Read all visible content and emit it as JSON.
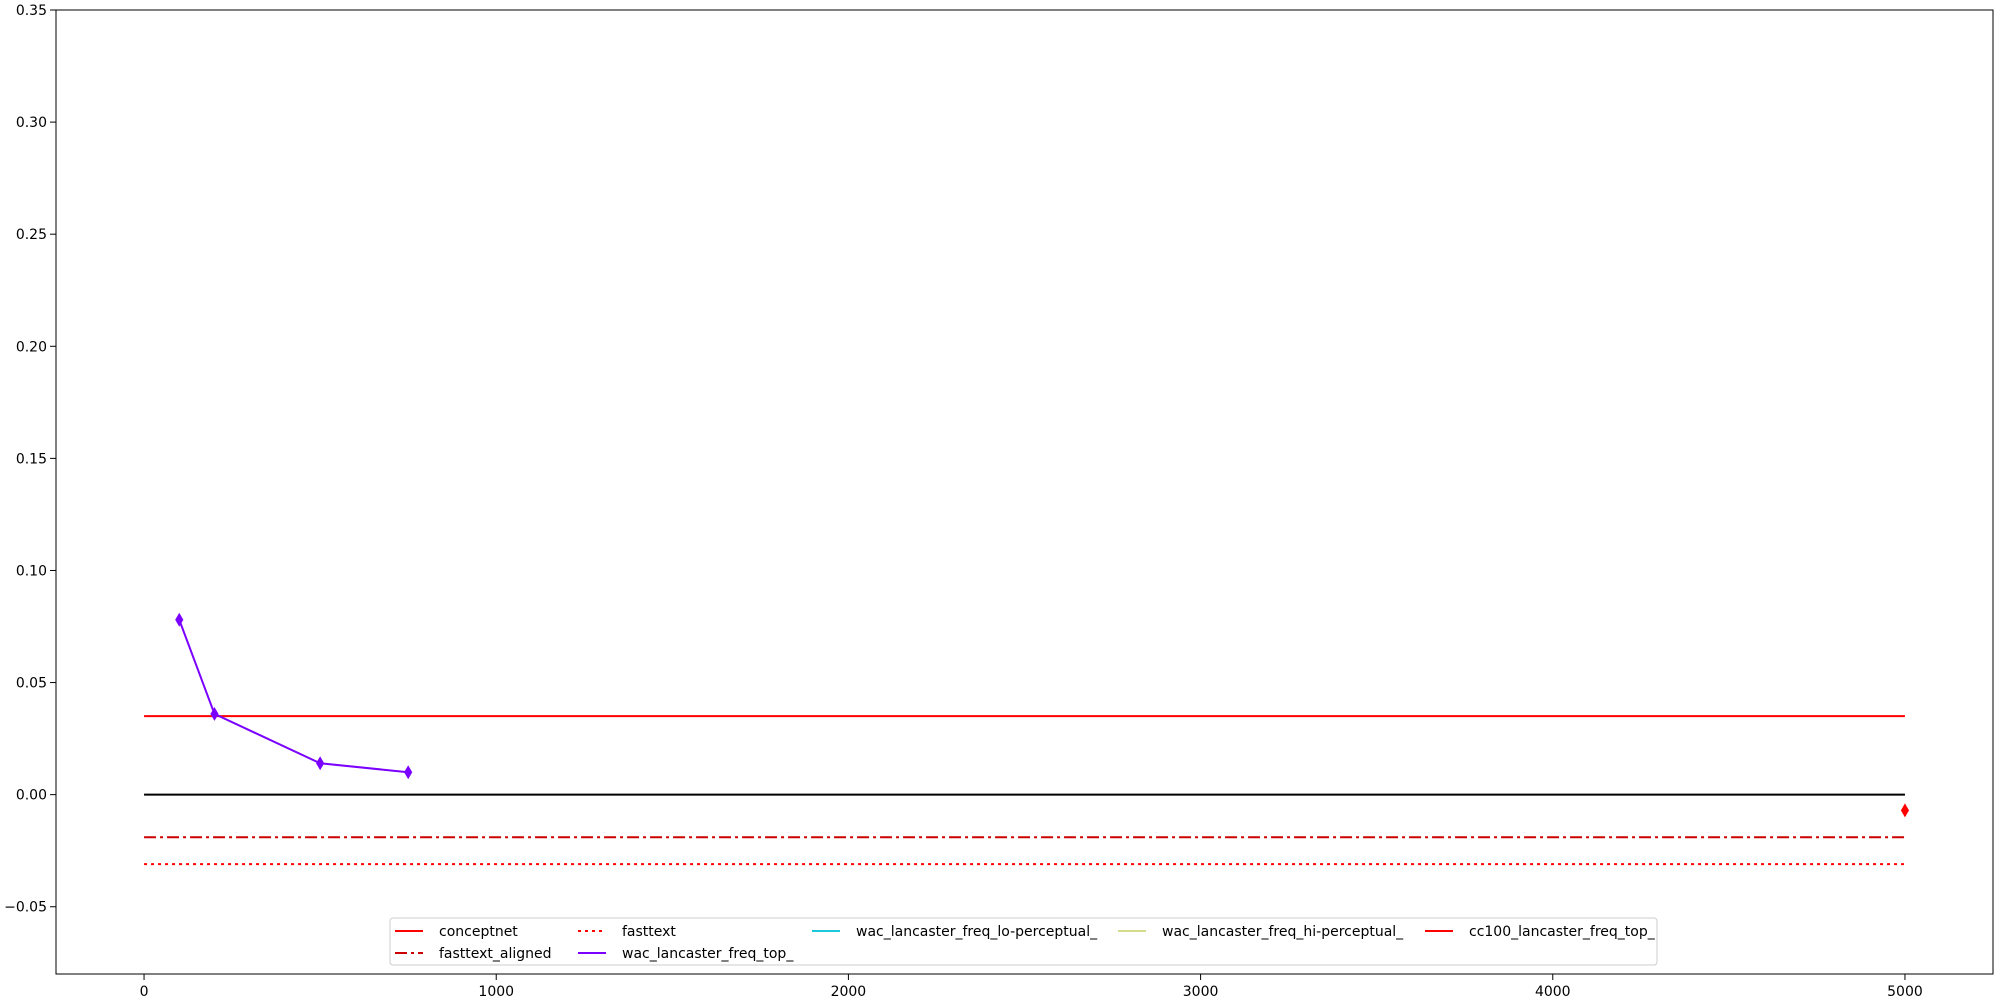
{
  "chart_data": {
    "type": "line",
    "title": "",
    "xlabel": "",
    "ylabel": "",
    "xlim": [
      -250,
      5250
    ],
    "ylim": [
      -0.08,
      0.35
    ],
    "x_ticks": [
      0,
      1000,
      2000,
      3000,
      4000,
      5000
    ],
    "x_tick_labels": [
      "0",
      "1000",
      "2000",
      "3000",
      "4000",
      "5000"
    ],
    "y_ticks": [
      -0.05,
      0.0,
      0.05,
      0.1,
      0.15,
      0.2,
      0.25,
      0.3,
      0.35
    ],
    "y_tick_labels": [
      "−0.05",
      "0.00",
      "0.05",
      "0.10",
      "0.15",
      "0.20",
      "0.25",
      "0.30",
      "0.35"
    ],
    "grid": false,
    "legend_position": "bottom-center",
    "legend": [
      {
        "name": "conceptnet",
        "color": "#ff0000",
        "style": "solid"
      },
      {
        "name": "fasttext_aligned",
        "color": "#cc0000",
        "style": "dashdot"
      },
      {
        "name": "fasttext",
        "color": "#ff0000",
        "style": "dotted"
      },
      {
        "name": "wac_lancaster_freq_top_",
        "color": "#7a00ff",
        "style": "solid"
      },
      {
        "name": "wac_lancaster_freq_lo-perceptual_",
        "color": "#1ec8d8",
        "style": "solid"
      },
      {
        "name": "wac_lancaster_freq_hi-perceptual_",
        "color": "#d4dc8a",
        "style": "solid"
      },
      {
        "name": "cc100_lancaster_freq_top_",
        "color": "#ff0000",
        "style": "solid"
      }
    ],
    "series": [
      {
        "name": "conceptnet",
        "color": "#ff0000",
        "style": "solid",
        "marker": "none",
        "x": [
          0,
          5000
        ],
        "y": [
          0.035,
          0.035
        ]
      },
      {
        "name": "fasttext_aligned",
        "color": "#cc0000",
        "style": "dashdot",
        "marker": "none",
        "x": [
          0,
          5000
        ],
        "y": [
          -0.019,
          -0.019
        ]
      },
      {
        "name": "fasttext",
        "color": "#ff0000",
        "style": "dotted",
        "marker": "none",
        "x": [
          0,
          5000
        ],
        "y": [
          -0.031,
          -0.031
        ]
      },
      {
        "name": "",
        "color": "#000000",
        "style": "solid",
        "marker": "none",
        "x": [
          0,
          5000
        ],
        "y": [
          0.0,
          0.0
        ]
      },
      {
        "name": "wac_lancaster_freq_top_",
        "color": "#7a00ff",
        "style": "solid",
        "marker": "diamond",
        "x": [
          100,
          200,
          500,
          750
        ],
        "y": [
          0.078,
          0.036,
          0.014,
          0.01
        ]
      },
      {
        "name": "cc100_lancaster_freq_top_",
        "color": "#ff0000",
        "style": "solid",
        "marker": "diamond",
        "x": [
          5000
        ],
        "y": [
          -0.007
        ]
      }
    ]
  }
}
